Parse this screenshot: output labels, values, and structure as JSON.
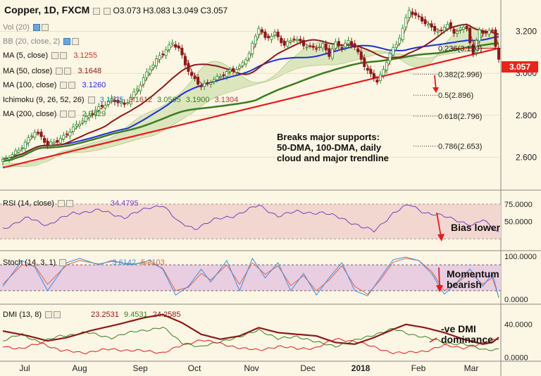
{
  "header": {
    "symbol": "Copper, 1D, FXCM",
    "open": "O3.073",
    "high": "H3.083",
    "low": "L3.049",
    "close": "C3.057"
  },
  "legend": {
    "vol": "Vol (20)",
    "bb": "BB (20, close, 2)",
    "ma5": "MA (5, close)",
    "ma5_val": "3.1255",
    "ma50": "MA (50, close)",
    "ma50_val": "3.1648",
    "ma100": "MA (100, close)",
    "ma100_val": "3.1260",
    "ichimoku": "Ichimoku (9, 26, 52, 26)",
    "ichi_vals": [
      "3.1525",
      "3.1612",
      "3.0565",
      "3.1900",
      "3.1304"
    ],
    "ma200": "MA (200, close)",
    "ma200_val": "2.9429",
    "rsi": "RSI (14, close)",
    "rsi_val": "34.4795",
    "stoch": "Stoch (14, 3, 1)",
    "stoch_vals": [
      "3.6142",
      "5.2103"
    ],
    "dmi": "DMI (13, 8)",
    "dmi_vals": [
      "23.2531",
      "9.4531",
      "24.2585"
    ]
  },
  "current_price": "3.057",
  "annotations": {
    "breaks": [
      "Breaks major supports:",
      "50-DMA, 100-DMA, daily",
      "cloud and major trendline"
    ],
    "bias": "Bias lower",
    "momentum": [
      "Momentum",
      "bearish"
    ],
    "dmi": [
      "-ve DMI",
      "dominance"
    ]
  },
  "colors": {
    "bg": "#fcf6e4",
    "up": "#2a8a2a",
    "down": "#8b1a1a",
    "ma5": "#c0392b",
    "ma50": "#8b1a1a",
    "ma100": "#1f2fd6",
    "ma200": "#3b7d23",
    "trend": "#e31d1d",
    "cloud": "#c6dca4",
    "rsi": "#7b3fbf",
    "stochK": "#3d8fe0",
    "stochD": "#e0674a",
    "dmiAdx": "#8b1a1a",
    "dmiPlus": "#3b7d23",
    "dmiMinus": "#e31d1d"
  },
  "chart_data": {
    "type": "candlestick",
    "x_ticks": [
      "Jul",
      "Aug",
      "Sep",
      "Oct",
      "Nov",
      "Dec",
      "2018",
      "Feb",
      "Mar"
    ],
    "price_axis": {
      "ticks": [
        "3.200",
        "3.000",
        "2.800",
        "2.600"
      ],
      "range": [
        2.45,
        3.35
      ]
    },
    "price_anchors": [
      [
        0,
        2.58
      ],
      [
        5,
        2.64
      ],
      [
        10,
        2.72
      ],
      [
        14,
        2.66
      ],
      [
        19,
        2.7
      ],
      [
        24,
        2.76
      ],
      [
        29,
        2.83
      ],
      [
        34,
        2.87
      ],
      [
        38,
        2.85
      ],
      [
        42,
        2.93
      ],
      [
        46,
        3.02
      ],
      [
        50,
        3.1
      ],
      [
        53,
        3.15
      ],
      [
        55,
        3.12
      ],
      [
        57,
        3.04
      ],
      [
        59,
        2.98
      ],
      [
        62,
        2.94
      ],
      [
        64,
        2.96
      ],
      [
        67,
        2.98
      ],
      [
        70,
        3.0
      ],
      [
        74,
        3.03
      ],
      [
        77,
        3.1
      ],
      [
        80,
        3.22
      ],
      [
        82,
        3.16
      ],
      [
        85,
        3.19
      ],
      [
        88,
        3.14
      ],
      [
        91,
        3.17
      ],
      [
        94,
        3.13
      ],
      [
        97,
        3.12
      ],
      [
        100,
        3.14
      ],
      [
        102,
        3.09
      ],
      [
        104,
        3.14
      ],
      [
        106,
        3.12
      ],
      [
        108,
        3.15
      ],
      [
        110,
        3.13
      ],
      [
        112,
        3.07
      ],
      [
        115,
        2.99
      ],
      [
        117,
        2.96
      ],
      [
        119,
        3.01
      ],
      [
        121,
        3.1
      ],
      [
        123,
        3.14
      ],
      [
        125,
        3.22
      ],
      [
        127,
        3.3
      ],
      [
        129,
        3.27
      ],
      [
        131,
        3.25
      ],
      [
        134,
        3.22
      ],
      [
        137,
        3.2
      ],
      [
        139,
        3.24
      ],
      [
        141,
        3.18
      ],
      [
        143,
        3.22
      ],
      [
        145,
        3.21
      ],
      [
        147,
        3.1
      ],
      [
        149,
        3.21
      ],
      [
        151,
        3.19
      ],
      [
        153,
        3.2
      ],
      [
        155,
        3.06
      ]
    ],
    "fibonacci": [
      {
        "label": "0.236(3.120)",
        "value": 3.12
      },
      {
        "label": "0.382(2.996)",
        "value": 2.996
      },
      {
        "label": "0.5(2.896)",
        "value": 2.896
      },
      {
        "label": "0.618(2.796)",
        "value": 2.796
      },
      {
        "label": "0.786(2.653)",
        "value": 2.653
      }
    ],
    "rsi_axis": {
      "ticks": [
        "75.0000",
        "50.0000"
      ],
      "range": [
        10,
        90
      ]
    },
    "rsi_anchors": [
      [
        0,
        40
      ],
      [
        8,
        55
      ],
      [
        14,
        45
      ],
      [
        22,
        62
      ],
      [
        30,
        66
      ],
      [
        38,
        56
      ],
      [
        46,
        70
      ],
      [
        50,
        74
      ],
      [
        55,
        48
      ],
      [
        60,
        40
      ],
      [
        66,
        52
      ],
      [
        72,
        58
      ],
      [
        80,
        73
      ],
      [
        86,
        58
      ],
      [
        92,
        64
      ],
      [
        100,
        62
      ],
      [
        106,
        55
      ],
      [
        112,
        42
      ],
      [
        116,
        36
      ],
      [
        122,
        62
      ],
      [
        127,
        74
      ],
      [
        132,
        63
      ],
      [
        137,
        58
      ],
      [
        142,
        52
      ],
      [
        147,
        44
      ],
      [
        150,
        52
      ],
      [
        155,
        34.5
      ]
    ],
    "stoch_axis": {
      "ticks": [
        "100.0000",
        "0.0000"
      ],
      "range": [
        -8,
        108
      ]
    },
    "stoch_k_anchors": [
      [
        0,
        30
      ],
      [
        6,
        90
      ],
      [
        10,
        75
      ],
      [
        14,
        20
      ],
      [
        20,
        85
      ],
      [
        24,
        95
      ],
      [
        30,
        80
      ],
      [
        34,
        90
      ],
      [
        40,
        80
      ],
      [
        46,
        90
      ],
      [
        50,
        70
      ],
      [
        54,
        10
      ],
      [
        58,
        30
      ],
      [
        62,
        70
      ],
      [
        65,
        40
      ],
      [
        70,
        90
      ],
      [
        74,
        20
      ],
      [
        78,
        95
      ],
      [
        82,
        50
      ],
      [
        86,
        85
      ],
      [
        90,
        20
      ],
      [
        94,
        60
      ],
      [
        98,
        10
      ],
      [
        102,
        50
      ],
      [
        106,
        85
      ],
      [
        110,
        20
      ],
      [
        114,
        8
      ],
      [
        118,
        50
      ],
      [
        122,
        92
      ],
      [
        126,
        98
      ],
      [
        130,
        90
      ],
      [
        134,
        60
      ],
      [
        138,
        12
      ],
      [
        142,
        40
      ],
      [
        146,
        70
      ],
      [
        150,
        30
      ],
      [
        153,
        60
      ],
      [
        155,
        3.6
      ]
    ],
    "stoch_d_anchors": [
      [
        0,
        35
      ],
      [
        6,
        80
      ],
      [
        10,
        78
      ],
      [
        14,
        35
      ],
      [
        20,
        80
      ],
      [
        24,
        90
      ],
      [
        30,
        82
      ],
      [
        34,
        88
      ],
      [
        40,
        82
      ],
      [
        46,
        85
      ],
      [
        50,
        72
      ],
      [
        54,
        20
      ],
      [
        58,
        28
      ],
      [
        62,
        60
      ],
      [
        65,
        45
      ],
      [
        70,
        80
      ],
      [
        74,
        35
      ],
      [
        78,
        85
      ],
      [
        82,
        58
      ],
      [
        86,
        78
      ],
      [
        90,
        32
      ],
      [
        94,
        55
      ],
      [
        98,
        20
      ],
      [
        102,
        45
      ],
      [
        106,
        78
      ],
      [
        110,
        30
      ],
      [
        114,
        12
      ],
      [
        118,
        45
      ],
      [
        122,
        86
      ],
      [
        126,
        95
      ],
      [
        130,
        90
      ],
      [
        134,
        65
      ],
      [
        138,
        20
      ],
      [
        142,
        38
      ],
      [
        146,
        62
      ],
      [
        150,
        35
      ],
      [
        153,
        50
      ],
      [
        155,
        5.2
      ]
    ],
    "dmi_axis": {
      "ticks": [
        "40.0000",
        "0.0000"
      ],
      "range": [
        -3,
        62
      ]
    },
    "dmi_adx_anchors": [
      [
        0,
        32
      ],
      [
        8,
        26
      ],
      [
        14,
        20
      ],
      [
        20,
        24
      ],
      [
        28,
        33
      ],
      [
        36,
        40
      ],
      [
        44,
        48
      ],
      [
        50,
        52
      ],
      [
        56,
        42
      ],
      [
        62,
        28
      ],
      [
        68,
        22
      ],
      [
        74,
        26
      ],
      [
        80,
        36
      ],
      [
        86,
        30
      ],
      [
        92,
        28
      ],
      [
        98,
        26
      ],
      [
        104,
        18
      ],
      [
        110,
        16
      ],
      [
        116,
        24
      ],
      [
        122,
        34
      ],
      [
        126,
        40
      ],
      [
        132,
        36
      ],
      [
        138,
        30
      ],
      [
        144,
        22
      ],
      [
        150,
        16
      ],
      [
        153,
        18
      ],
      [
        155,
        24.3
      ]
    ],
    "dmi_plus_anchors": [
      [
        0,
        20
      ],
      [
        6,
        28
      ],
      [
        12,
        18
      ],
      [
        18,
        26
      ],
      [
        26,
        30
      ],
      [
        34,
        24
      ],
      [
        42,
        32
      ],
      [
        50,
        36
      ],
      [
        56,
        18
      ],
      [
        62,
        12
      ],
      [
        68,
        20
      ],
      [
        74,
        24
      ],
      [
        80,
        34
      ],
      [
        86,
        22
      ],
      [
        92,
        26
      ],
      [
        98,
        18
      ],
      [
        104,
        14
      ],
      [
        110,
        20
      ],
      [
        116,
        28
      ],
      [
        122,
        34
      ],
      [
        126,
        30
      ],
      [
        132,
        24
      ],
      [
        138,
        18
      ],
      [
        144,
        16
      ],
      [
        150,
        10
      ],
      [
        155,
        9.5
      ]
    ],
    "dmi_minus_anchors": [
      [
        0,
        14
      ],
      [
        6,
        10
      ],
      [
        12,
        18
      ],
      [
        18,
        8
      ],
      [
        26,
        6
      ],
      [
        34,
        10
      ],
      [
        42,
        8
      ],
      [
        50,
        6
      ],
      [
        56,
        14
      ],
      [
        62,
        22
      ],
      [
        68,
        16
      ],
      [
        74,
        12
      ],
      [
        80,
        8
      ],
      [
        86,
        14
      ],
      [
        92,
        10
      ],
      [
        98,
        12
      ],
      [
        104,
        22
      ],
      [
        110,
        20
      ],
      [
        116,
        12
      ],
      [
        122,
        6
      ],
      [
        126,
        5
      ],
      [
        132,
        8
      ],
      [
        138,
        14
      ],
      [
        144,
        12
      ],
      [
        150,
        16
      ],
      [
        155,
        23.3
      ]
    ]
  }
}
